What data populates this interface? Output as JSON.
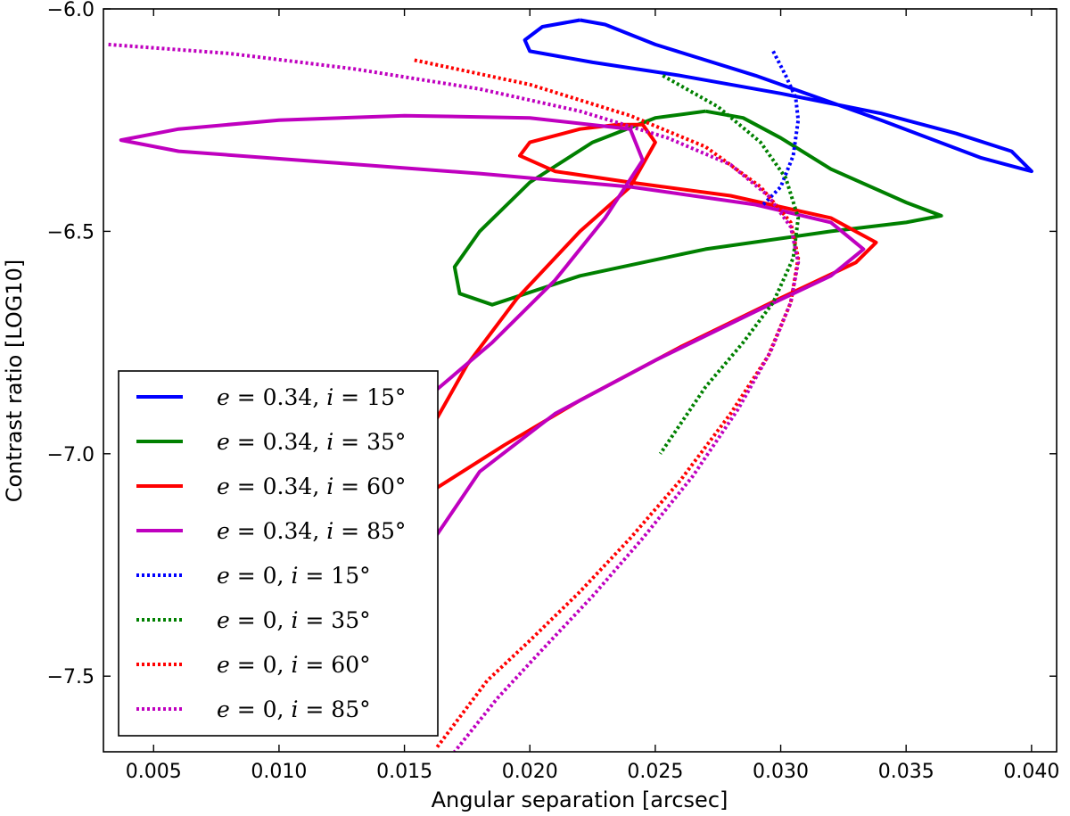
{
  "chart_data": {
    "type": "line",
    "title": "",
    "xlabel": "Angular separation [arcsec]",
    "ylabel": "Contrast ratio [LOG10]",
    "xlim": [
      0.003,
      0.041
    ],
    "ylim": [
      -7.67,
      -6.0
    ],
    "xticks": [
      0.005,
      0.01,
      0.015,
      0.02,
      0.025,
      0.03,
      0.035,
      0.04
    ],
    "xtick_labels": [
      "0.005",
      "0.010",
      "0.015",
      "0.020",
      "0.025",
      "0.030",
      "0.035",
      "0.040"
    ],
    "yticks": [
      -6.0,
      -6.5,
      -7.0,
      -7.5
    ],
    "ytick_labels": [
      "−6.0",
      "−6.5",
      "−7.0",
      "−7.5"
    ],
    "grid": false,
    "legend_position": "bottom-left",
    "series": [
      {
        "name": "e=0.34, i=15°",
        "color": "#0000ff",
        "style": "solid",
        "x": [
          0.022,
          0.0205,
          0.0198,
          0.02,
          0.0225,
          0.026,
          0.03,
          0.034,
          0.037,
          0.0392,
          0.04,
          0.038,
          0.034,
          0.029,
          0.025,
          0.023,
          0.022
        ],
        "y": [
          -6.025,
          -6.04,
          -6.07,
          -6.095,
          -6.12,
          -6.15,
          -6.19,
          -6.235,
          -6.28,
          -6.32,
          -6.365,
          -6.335,
          -6.25,
          -6.15,
          -6.08,
          -6.035,
          -6.025
        ]
      },
      {
        "name": "e=0.34, i=35°",
        "color": "#008000",
        "style": "solid",
        "x": [
          0.027,
          0.025,
          0.0225,
          0.02,
          0.018,
          0.017,
          0.0172,
          0.0185,
          0.022,
          0.027,
          0.032,
          0.035,
          0.0364,
          0.035,
          0.032,
          0.03,
          0.0285,
          0.027
        ],
        "y": [
          -6.23,
          -6.245,
          -6.3,
          -6.39,
          -6.5,
          -6.58,
          -6.64,
          -6.665,
          -6.6,
          -6.54,
          -6.5,
          -6.48,
          -6.465,
          -6.435,
          -6.36,
          -6.29,
          -6.245,
          -6.23
        ]
      },
      {
        "name": "e=0.34, i=60°",
        "color": "#ff0000",
        "style": "solid",
        "x": [
          0.0162,
          0.0175,
          0.0195,
          0.022,
          0.024,
          0.025,
          0.0245,
          0.0235,
          0.022,
          0.02,
          0.0196,
          0.021,
          0.024,
          0.028,
          0.032,
          0.0338,
          0.033,
          0.03,
          0.026,
          0.022,
          0.019,
          0.0162
        ],
        "y": [
          -6.93,
          -6.8,
          -6.65,
          -6.5,
          -6.4,
          -6.3,
          -6.26,
          -6.26,
          -6.27,
          -6.3,
          -6.33,
          -6.365,
          -6.39,
          -6.42,
          -6.47,
          -6.525,
          -6.57,
          -6.65,
          -6.76,
          -6.88,
          -6.98,
          -7.08
        ]
      },
      {
        "name": "e=0.34, i=85°",
        "color": "#bf00bf",
        "style": "solid",
        "x": [
          0.0162,
          0.0185,
          0.021,
          0.023,
          0.0245,
          0.024,
          0.02,
          0.015,
          0.01,
          0.006,
          0.0037,
          0.006,
          0.012,
          0.018,
          0.024,
          0.029,
          0.032,
          0.0333,
          0.032,
          0.029,
          0.025,
          0.021,
          0.018,
          0.0162
        ],
        "y": [
          -6.86,
          -6.75,
          -6.61,
          -6.47,
          -6.34,
          -6.27,
          -6.245,
          -6.24,
          -6.25,
          -6.27,
          -6.295,
          -6.32,
          -6.345,
          -6.37,
          -6.4,
          -6.44,
          -6.48,
          -6.54,
          -6.6,
          -6.68,
          -6.79,
          -6.91,
          -7.04,
          -7.19
        ]
      },
      {
        "name": "e=0, i=15°",
        "color": "#0000ff",
        "style": "dotted",
        "x": [
          0.0297,
          0.0302,
          0.0306,
          0.0307,
          0.0305,
          0.03,
          0.0293
        ],
        "y": [
          -6.095,
          -6.15,
          -6.2,
          -6.25,
          -6.33,
          -6.4,
          -6.44
        ]
      },
      {
        "name": "e=0, i=35°",
        "color": "#008000",
        "style": "dotted",
        "x": [
          0.0253,
          0.0275,
          0.0292,
          0.0302,
          0.0307,
          0.0305,
          0.0297,
          0.0285,
          0.027,
          0.0252
        ],
        "y": [
          -6.15,
          -6.22,
          -6.3,
          -6.38,
          -6.47,
          -6.56,
          -6.66,
          -6.75,
          -6.85,
          -7.0
        ]
      },
      {
        "name": "e=0, i=60°",
        "color": "#ff0000",
        "style": "dotted",
        "x": [
          0.0154,
          0.02,
          0.024,
          0.027,
          0.0292,
          0.0304,
          0.0307,
          0.0304,
          0.0295,
          0.028,
          0.026,
          0.024,
          0.022,
          0.02,
          0.0183,
          0.0163
        ],
        "y": [
          -6.115,
          -6.17,
          -6.24,
          -6.31,
          -6.4,
          -6.48,
          -6.56,
          -6.66,
          -6.78,
          -6.91,
          -7.06,
          -7.19,
          -7.31,
          -7.42,
          -7.51,
          -7.66
        ]
      },
      {
        "name": "e=0, i=85°",
        "color": "#bf00bf",
        "style": "dotted",
        "x": [
          0.0032,
          0.008,
          0.013,
          0.018,
          0.022,
          0.0255,
          0.028,
          0.0295,
          0.0304,
          0.0307,
          0.0304,
          0.0296,
          0.0283,
          0.0265,
          0.0245,
          0.0225,
          0.0205,
          0.0187,
          0.017
        ],
        "y": [
          -6.08,
          -6.1,
          -6.135,
          -6.18,
          -6.23,
          -6.29,
          -6.35,
          -6.42,
          -6.49,
          -6.57,
          -6.66,
          -6.77,
          -6.9,
          -7.05,
          -7.19,
          -7.32,
          -7.44,
          -7.55,
          -7.67
        ]
      }
    ],
    "curve_clip": {
      "x_min": 0.0,
      "y_min": -7.67
    }
  },
  "legend": {
    "entries": [
      {
        "e": "0.34",
        "i": "15°",
        "color": "#0000ff",
        "style": "solid"
      },
      {
        "e": "0.34",
        "i": "35°",
        "color": "#008000",
        "style": "solid"
      },
      {
        "e": "0.34",
        "i": "60°",
        "color": "#ff0000",
        "style": "solid"
      },
      {
        "e": "0.34",
        "i": "85°",
        "color": "#bf00bf",
        "style": "solid"
      },
      {
        "e": "0",
        "i": "15°",
        "color": "#0000ff",
        "style": "dotted"
      },
      {
        "e": "0",
        "i": "35°",
        "color": "#008000",
        "style": "dotted"
      },
      {
        "e": "0",
        "i": "60°",
        "color": "#ff0000",
        "style": "dotted"
      },
      {
        "e": "0",
        "i": "85°",
        "color": "#bf00bf",
        "style": "dotted"
      }
    ]
  }
}
